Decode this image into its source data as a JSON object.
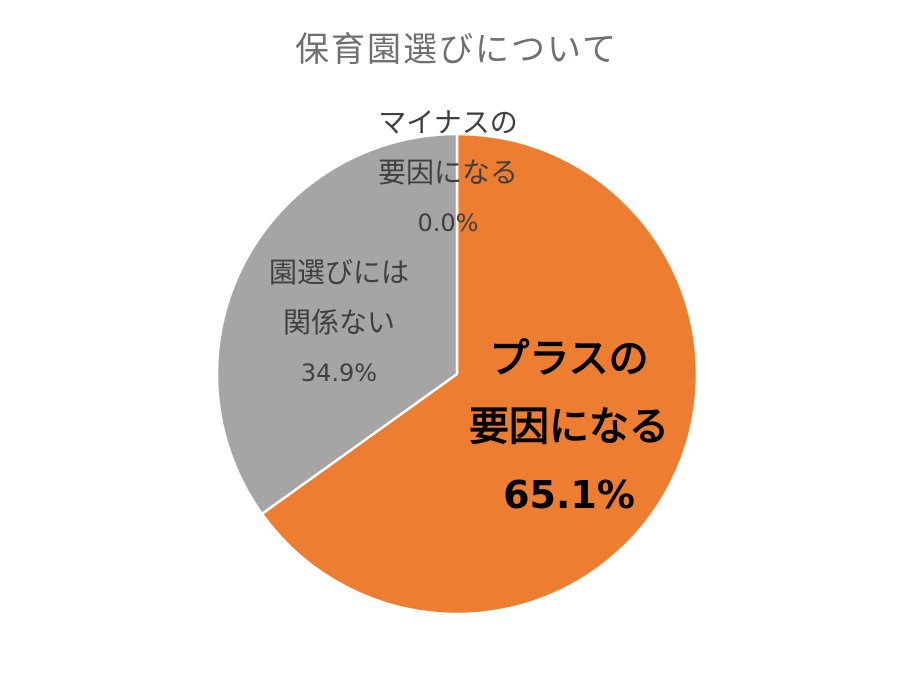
{
  "chart_data": {
    "type": "pie",
    "title": "保育園選びについて",
    "slices": [
      {
        "name": "プラスの要因になる",
        "label_lines": [
          "プラスの",
          "要因になる"
        ],
        "value": 65.1,
        "value_label": "65.1%",
        "color": "#ED7D31"
      },
      {
        "name": "園選びには関係ない",
        "label_lines": [
          "園選びには",
          "関係ない"
        ],
        "value": 34.9,
        "value_label": "34.9%",
        "color": "#A5A5A5"
      },
      {
        "name": "マイナスの要因になる",
        "label_lines": [
          "マイナスの",
          "要因になる"
        ],
        "value": 0.0,
        "value_label": "0.0%",
        "color": "#4472C4"
      }
    ],
    "start_angle_deg": 0,
    "direction": "clockwise",
    "legend": "none"
  }
}
